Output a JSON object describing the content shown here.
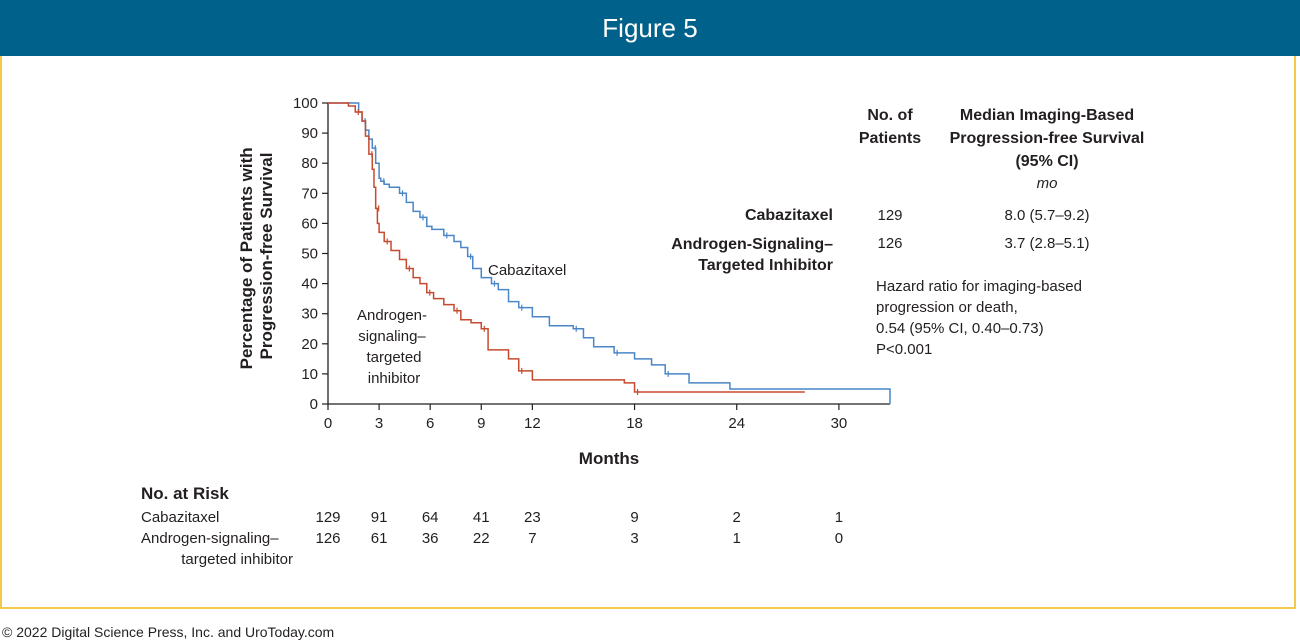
{
  "figure_title": "Figure 5",
  "footer": "© 2022 Digital Science Press, Inc. and UroToday.com",
  "colors": {
    "header": "#00628b",
    "border": "#f2c94c",
    "cabazitaxel": "#4a86c8",
    "arsi": "#c84a2e"
  },
  "chart_data": {
    "type": "line",
    "subtype": "kaplan-meier step",
    "ylabel_line1": "Percentage of Patients with",
    "ylabel_line2": "Progression-free Survival",
    "xlabel": "Months",
    "xlim": [
      0,
      33
    ],
    "ylim": [
      0,
      100
    ],
    "x_ticks": [
      0,
      3,
      6,
      9,
      12,
      18,
      24,
      30
    ],
    "y_ticks": [
      0,
      10,
      20,
      30,
      40,
      50,
      60,
      70,
      80,
      90,
      100
    ],
    "grid": false,
    "series": [
      {
        "name": "Cabazitaxel",
        "color": "#4a86c8",
        "x": [
          0,
          1.8,
          2.0,
          2.2,
          2.4,
          2.6,
          2.8,
          3.0,
          3.1,
          3.3,
          3.6,
          4.2,
          4.6,
          5.0,
          5.4,
          5.8,
          6.1,
          6.8,
          7.4,
          7.8,
          8.2,
          8.5,
          9.0,
          9.6,
          10.0,
          10.6,
          11.2,
          12.0,
          13.0,
          14.4,
          15.0,
          15.6,
          16.8,
          18.0,
          19.0,
          19.8,
          21.2,
          23.6,
          33.0
        ],
        "y": [
          100,
          97,
          94,
          91,
          88,
          85,
          80,
          75,
          74,
          73,
          72,
          70,
          67,
          64,
          62,
          59,
          58,
          56,
          54,
          52,
          49,
          45,
          42,
          40,
          38,
          34,
          32,
          29,
          26,
          25,
          22,
          19,
          17,
          15,
          13,
          10,
          7,
          5,
          5
        ]
      },
      {
        "name": "Androgen-signaling–targeted inhibitor",
        "color": "#c84a2e",
        "x": [
          0,
          1.2,
          1.6,
          2.0,
          2.2,
          2.4,
          2.6,
          2.7,
          2.8,
          2.9,
          3.0,
          3.3,
          3.7,
          4.2,
          4.6,
          5.0,
          5.4,
          5.8,
          6.2,
          6.8,
          7.4,
          7.8,
          8.4,
          9.0,
          9.4,
          10.6,
          11.2,
          12.0,
          17.4,
          18.0,
          28.0
        ],
        "y": [
          100,
          99,
          97,
          94,
          89,
          83,
          78,
          72,
          65,
          60,
          57,
          54,
          51,
          48,
          45,
          42,
          40,
          37,
          35,
          33,
          31,
          28,
          27,
          25,
          18,
          15,
          11,
          8,
          7,
          4,
          4
        ]
      }
    ],
    "annotations": [
      "Cabazitaxel",
      "Androgen-",
      "signaling–",
      "targeted",
      "inhibitor"
    ]
  },
  "summary_table": {
    "col_patients_1": "No. of",
    "col_patients_2": "Patients",
    "col_pfs_1": "Median Imaging-Based",
    "col_pfs_2": "Progression-free Survival",
    "col_pfs_3": "(95% CI)",
    "col_pfs_unit": "mo",
    "rows": [
      {
        "name": "Cabazitaxel",
        "patients": "129",
        "median": "8.0 (5.7–9.2)"
      },
      {
        "name_1": "Androgen-Signaling–",
        "name_2": "Targeted Inhibitor",
        "patients": "126",
        "median": "3.7 (2.8–5.1)"
      }
    ],
    "hazard_1": "Hazard ratio for imaging-based",
    "hazard_2": "progression or death,",
    "hazard_3": "0.54 (95% CI, 0.40–0.73)",
    "hazard_4": "P<0.001"
  },
  "at_risk": {
    "title": "No. at Risk",
    "cab_label": "Cabazitaxel",
    "cab_values": [
      "129",
      "91",
      "64",
      "41",
      "23",
      "9",
      "2",
      "1"
    ],
    "arsi_label_1": "Androgen-signaling–",
    "arsi_label_2": "targeted inhibitor",
    "arsi_values": [
      "126",
      "61",
      "36",
      "22",
      "7",
      "3",
      "1",
      "0"
    ]
  }
}
